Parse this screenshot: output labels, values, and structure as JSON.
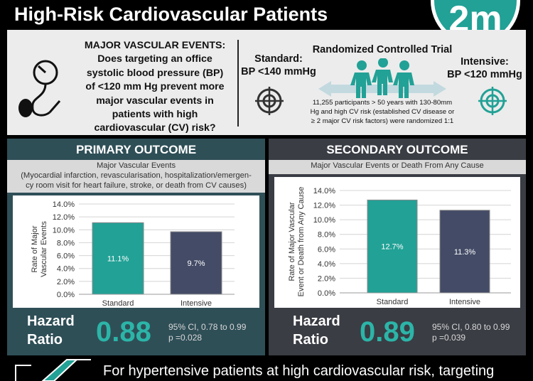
{
  "header": {
    "title": "High-Risk Cardiovascular Patients",
    "logo_text": "2m"
  },
  "question": {
    "lines": [
      "MAJOR VASCULAR EVENTS:",
      "Does targeting an office",
      "systolic blood pressure (BP)",
      "of <120 mm Hg prevent more",
      "major vascular events in",
      "patients with high",
      "cardiovascular (CV) risk?"
    ]
  },
  "trial": {
    "title": "Randomized Controlled Trial",
    "standard": {
      "label": "Standard:",
      "target": "BP <140 mmHg"
    },
    "intensive": {
      "label": "Intensive:",
      "target": "BP <120 mmHg"
    },
    "description_lines": [
      "11,255 participants > 50 years with 130-80mm",
      "Hg and high CV risk (established CV disease or",
      "≥ 2 major CV risk factors) were randomized 1:1"
    ]
  },
  "primary": {
    "heading": "PRIMARY OUTCOME",
    "subtitle_lines": [
      "Major Vascular Events",
      "(Myocardial infarction, revascularisation, hospitalization/emergen-",
      "cy room visit for heart failure, stroke, or death from CV causes)"
    ],
    "hazard_label_1": "Hazard",
    "hazard_label_2": "Ratio",
    "hazard_value": "0.88",
    "ci": "95% CI, 0.78 to 0.99",
    "p": "p =0.028"
  },
  "secondary": {
    "heading": "SECONDARY OUTCOME",
    "subtitle": "Major Vascular Events or Death From Any Cause",
    "hazard_label_1": "Hazard",
    "hazard_label_2": "Ratio",
    "hazard_value": "0.89",
    "ci": "95% CI, 0.80 to 0.99",
    "p": "p =0.039"
  },
  "footer": {
    "text": "For hypertensive patients at high cardiovascular risk, targeting"
  },
  "colors": {
    "standard_bar": "#22a196",
    "intensive_bar": "#434b66",
    "accent": "#2bb5a8"
  },
  "chart_data": [
    {
      "type": "bar",
      "categories": [
        "Standard",
        "Intensive"
      ],
      "values": [
        11.1,
        9.7
      ],
      "data_labels": [
        "11.1%",
        "9.7%"
      ],
      "ylabel_lines": [
        "Rate of Major",
        "Vascular Events"
      ],
      "ylim": [
        0,
        14
      ],
      "yticks": [
        "0.0%",
        "2.0%",
        "4.0%",
        "6.0%",
        "8.0%",
        "10.0%",
        "12.0%",
        "14.0%"
      ],
      "grid": true
    },
    {
      "type": "bar",
      "categories": [
        "Standard",
        "Intensive"
      ],
      "values": [
        12.7,
        11.3
      ],
      "data_labels": [
        "12.7%",
        "11.3%"
      ],
      "ylabel_lines": [
        "Rate of Major Vascular",
        "Event or Death from Any Cause"
      ],
      "ylim": [
        0,
        14
      ],
      "yticks": [
        "0.0%",
        "2.0%",
        "4.0%",
        "6.0%",
        "8.0%",
        "10.0%",
        "12.0%",
        "14.0%"
      ],
      "grid": true
    }
  ]
}
